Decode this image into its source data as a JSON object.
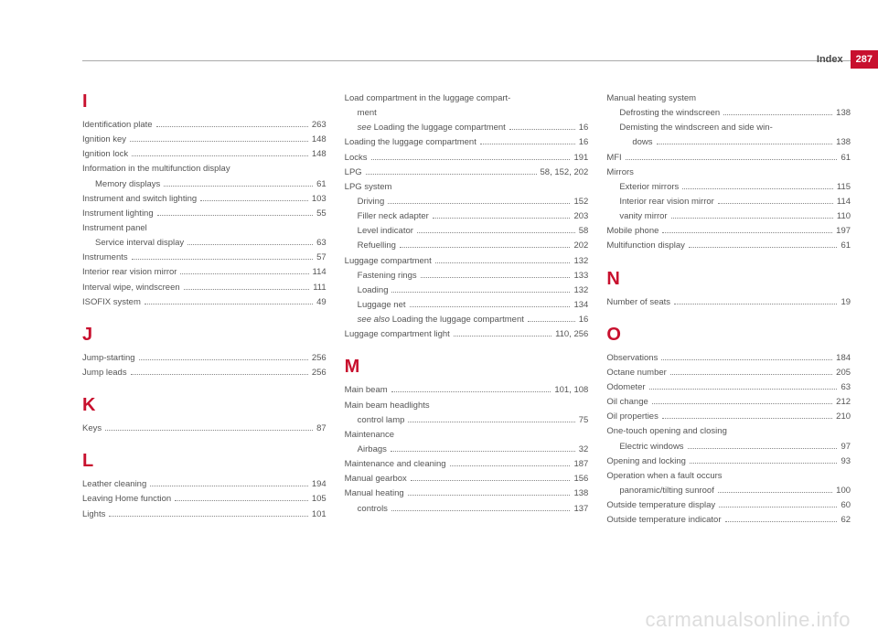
{
  "header": {
    "title": "Index",
    "page_number": "287"
  },
  "watermark": "carmanualsonline.info",
  "columns": [
    {
      "sections": [
        {
          "letter": "I",
          "first": true,
          "entries": [
            {
              "label": "Identification plate",
              "page": "263"
            },
            {
              "label": "Ignition key",
              "page": "148"
            },
            {
              "label": "Ignition lock",
              "page": "148"
            },
            {
              "label": "Information in the multifunction display",
              "noval": true
            },
            {
              "label": "Memory displays",
              "page": "61",
              "sub": true
            },
            {
              "label": "Instrument and switch lighting",
              "page": "103"
            },
            {
              "label": "Instrument lighting",
              "page": "55"
            },
            {
              "label": "Instrument panel",
              "noval": true
            },
            {
              "label": "Service interval display",
              "page": "63",
              "sub": true
            },
            {
              "label": "Instruments",
              "page": "57"
            },
            {
              "label": "Interior rear vision mirror",
              "page": "114"
            },
            {
              "label": "Interval wipe, windscreen",
              "page": "111"
            },
            {
              "label": "ISOFIX system",
              "page": "49"
            }
          ]
        },
        {
          "letter": "J",
          "entries": [
            {
              "label": "Jump-starting",
              "page": "256"
            },
            {
              "label": "Jump leads",
              "page": "256"
            }
          ]
        },
        {
          "letter": "K",
          "entries": [
            {
              "label": "Keys",
              "page": "87"
            }
          ]
        },
        {
          "letter": "L",
          "entries": [
            {
              "label": "Leather cleaning",
              "page": "194"
            },
            {
              "label": "Leaving Home function",
              "page": "105"
            },
            {
              "label": "Lights",
              "page": "101"
            }
          ]
        }
      ]
    },
    {
      "sections": [
        {
          "letter": "",
          "first": true,
          "entries": [
            {
              "label": "Load compartment in the luggage compart-",
              "noval": true
            },
            {
              "label": "ment",
              "noval": true,
              "sub": true
            },
            {
              "label_italic": "see ",
              "label": "Loading the luggage compartment",
              "page": "16",
              "sub": true
            },
            {
              "label": "Loading the luggage compartment",
              "page": "16"
            },
            {
              "label": "Locks",
              "page": "191"
            },
            {
              "label": "LPG",
              "page": "58, 152, 202"
            },
            {
              "label": "LPG system",
              "noval": true
            },
            {
              "label": "Driving",
              "page": "152",
              "sub": true
            },
            {
              "label": "Filler neck adapter",
              "page": "203",
              "sub": true
            },
            {
              "label": "Level indicator",
              "page": "58",
              "sub": true
            },
            {
              "label": "Refuelling",
              "page": "202",
              "sub": true
            },
            {
              "label": "Luggage compartment",
              "page": "132"
            },
            {
              "label": "Fastening rings",
              "page": "133",
              "sub": true
            },
            {
              "label": "Loading",
              "page": "132",
              "sub": true
            },
            {
              "label": "Luggage net",
              "page": "134",
              "sub": true
            },
            {
              "label_italic": "see also ",
              "label": "Loading the luggage compartment",
              "page": "16",
              "sub": true
            },
            {
              "label": "Luggage compartment light",
              "page": "110, 256"
            }
          ]
        },
        {
          "letter": "M",
          "entries": [
            {
              "label": "Main beam",
              "page": "101, 108"
            },
            {
              "label": "Main beam headlights",
              "noval": true
            },
            {
              "label": "control lamp",
              "page": "75",
              "sub": true
            },
            {
              "label": "Maintenance",
              "noval": true
            },
            {
              "label": "Airbags",
              "page": "32",
              "sub": true
            },
            {
              "label": "Maintenance and cleaning",
              "page": "187"
            },
            {
              "label": "Manual gearbox",
              "page": "156"
            },
            {
              "label": "Manual heating",
              "page": "138"
            },
            {
              "label": "controls",
              "page": "137",
              "sub": true
            }
          ]
        }
      ]
    },
    {
      "sections": [
        {
          "letter": "",
          "first": true,
          "entries": [
            {
              "label": "Manual heating system",
              "noval": true
            },
            {
              "label": "Defrosting the windscreen",
              "page": "138",
              "sub": true
            },
            {
              "label": "Demisting the windscreen and side win-",
              "noval": true,
              "sub": true
            },
            {
              "label": "dows",
              "page": "138",
              "sub": true,
              "extra_indent": true
            },
            {
              "label": "MFI",
              "page": "61"
            },
            {
              "label": "Mirrors",
              "noval": true
            },
            {
              "label": "Exterior mirrors",
              "page": "115",
              "sub": true
            },
            {
              "label": "Interior rear vision mirror",
              "page": "114",
              "sub": true
            },
            {
              "label": "vanity mirror",
              "page": "110",
              "sub": true
            },
            {
              "label": "Mobile phone",
              "page": "197"
            },
            {
              "label": "Multifunction display",
              "page": "61"
            }
          ]
        },
        {
          "letter": "N",
          "entries": [
            {
              "label": "Number of seats",
              "page": "19"
            }
          ]
        },
        {
          "letter": "O",
          "entries": [
            {
              "label": "Observations",
              "page": "184"
            },
            {
              "label": "Octane number",
              "page": "205"
            },
            {
              "label": "Odometer",
              "page": "63"
            },
            {
              "label": "Oil change",
              "page": "212"
            },
            {
              "label": "Oil properties",
              "page": "210"
            },
            {
              "label": "One-touch opening and closing",
              "noval": true
            },
            {
              "label": "Electric windows",
              "page": "97",
              "sub": true
            },
            {
              "label": "Opening and locking",
              "page": "93"
            },
            {
              "label": "Operation when a fault occurs",
              "noval": true
            },
            {
              "label": "panoramic/tilting sunroof",
              "page": "100",
              "sub": true
            },
            {
              "label": "Outside temperature display",
              "page": "60"
            },
            {
              "label": "Outside temperature indicator",
              "page": "62"
            }
          ]
        }
      ]
    }
  ]
}
